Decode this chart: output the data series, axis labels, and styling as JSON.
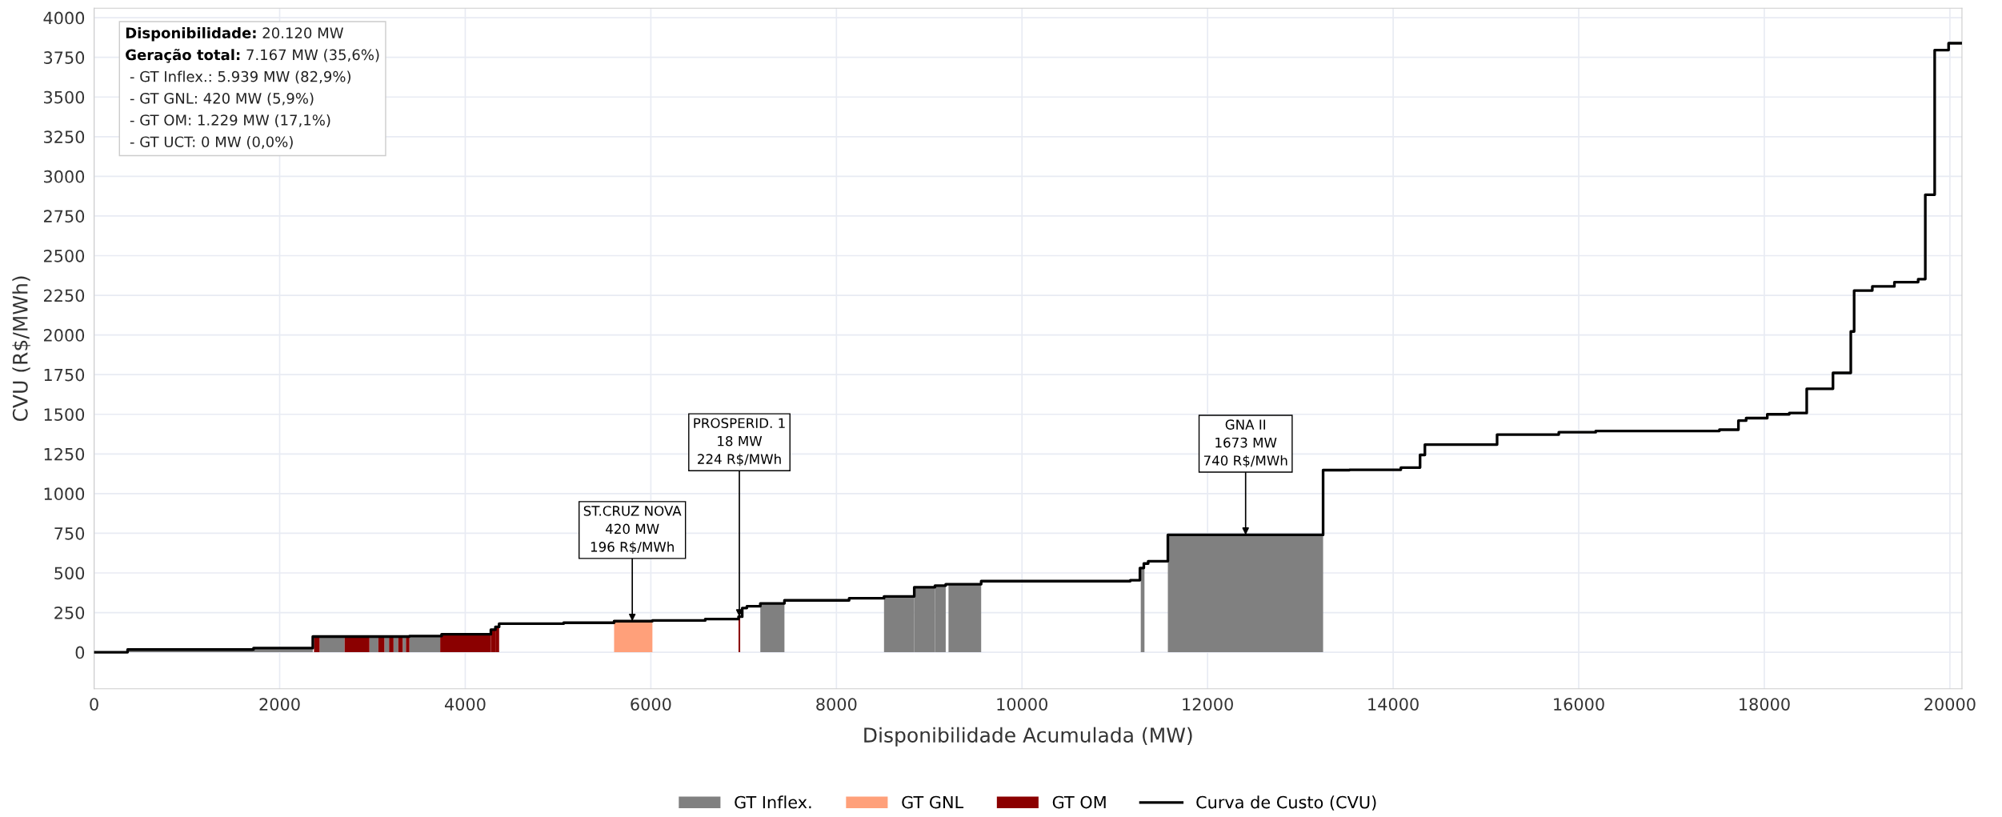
{
  "chart_data": {
    "type": "step",
    "xlabel": "Disponibilidade Acumulada (MW)",
    "ylabel": "CVU (R$/MWh)",
    "xlim": [
      0,
      20130
    ],
    "ylim": [
      -230,
      4060
    ],
    "xticks": [
      0,
      2000,
      4000,
      6000,
      8000,
      10000,
      12000,
      14000,
      16000,
      18000,
      20000
    ],
    "yticks": [
      0,
      250,
      500,
      750,
      1000,
      1250,
      1500,
      1750,
      2000,
      2250,
      2500,
      2750,
      3000,
      3250,
      3500,
      3750,
      4000
    ],
    "grid": true,
    "legend": "bottom",
    "series": [
      {
        "name": "GT Inflex.",
        "type": "histogram",
        "color": "#808080",
        "bins": [
          361,
          1718,
          2357,
          2430,
          2700,
          2967,
          3063,
          3129,
          3179,
          3227,
          3278,
          3326,
          3361,
          3398,
          3730,
          7180,
          7440,
          8513,
          8839,
          9062,
          9178,
          9208,
          9560,
          11280,
          11320,
          11572,
          13245
        ],
        "values": [
          17,
          26,
          0,
          99,
          0,
          99,
          0,
          99,
          0,
          99,
          0,
          99,
          0,
          102,
          0,
          308,
          0,
          352,
          410,
          420,
          0,
          429,
          0,
          531,
          0,
          740
        ]
      },
      {
        "name": "GT GNL",
        "type": "histogram",
        "color": "#ffa07a",
        "bins": [
          5604,
          6017
        ],
        "values": [
          196
        ]
      },
      {
        "name": "GT OM",
        "type": "histogram",
        "color": "#8b0000",
        "bins": [
          2370,
          2430,
          2700,
          2967,
          3063,
          3129,
          3179,
          3227,
          3278,
          3326,
          3361,
          3398,
          3730,
          4276,
          4325,
          4365,
          6945,
          6963
        ],
        "values": [
          99,
          0,
          99,
          0,
          99,
          0,
          99,
          0,
          99,
          0,
          99,
          0,
          113,
          142,
          160,
          0,
          224
        ]
      },
      {
        "name": "Curva de Custo (CVU)",
        "color": "#000000",
        "x": [
          0,
          361,
          1718,
          2357,
          3398,
          3745,
          4276,
          4325,
          4365,
          5060,
          5604,
          6017,
          6586,
          6945,
          6985,
          7035,
          7180,
          7440,
          8137,
          8513,
          8839,
          9062,
          9178,
          9560,
          11167,
          11271,
          11313,
          11360,
          11572,
          13245,
          13529,
          14083,
          14290,
          14342,
          15120,
          15785,
          16183,
          17516,
          17721,
          17804,
          18032,
          18269,
          18457,
          18740,
          18932,
          18968,
          19164,
          19402,
          19658,
          19735,
          19836,
          19986,
          20120
        ],
        "values": [
          0,
          17,
          26,
          99,
          102,
          113,
          142,
          160,
          180,
          186,
          196,
          200,
          209,
          224,
          279,
          290,
          308,
          327,
          340,
          352,
          410,
          420,
          429,
          448,
          454,
          531,
          559,
          574,
          740,
          1148,
          1150,
          1164,
          1244,
          1309,
          1372,
          1387,
          1395,
          1403,
          1460,
          1476,
          1500,
          1508,
          1661,
          1761,
          2022,
          2280,
          2306,
          2333,
          2352,
          2884,
          3796,
          3839,
          3839
        ]
      }
    ],
    "annotations": [
      "Disponibilidade: 20.120 MW",
      "Geração total: 7.167 MW (35,6%)",
      " - GT Inflex.: 5.939 MW (82,9%)",
      " - GT GNL: 420 MW (5,9%)",
      " - GT OM: 1.229 MW (17,1%)",
      " - GT UCT: 0 MW (0,0%)",
      {
        "text": "ST.CRUZ NOVA\n420 MW\n196 R$/MWh",
        "x": 5800,
        "y": 196
      },
      {
        "text": "PROSPERID. 1\n18 MW\n224 R$/MWh",
        "x": 6954,
        "y": 224
      },
      {
        "text": "GNA II\n1673 MW\n740 R$/MWh",
        "x": 12410,
        "y": 740
      }
    ]
  }
}
